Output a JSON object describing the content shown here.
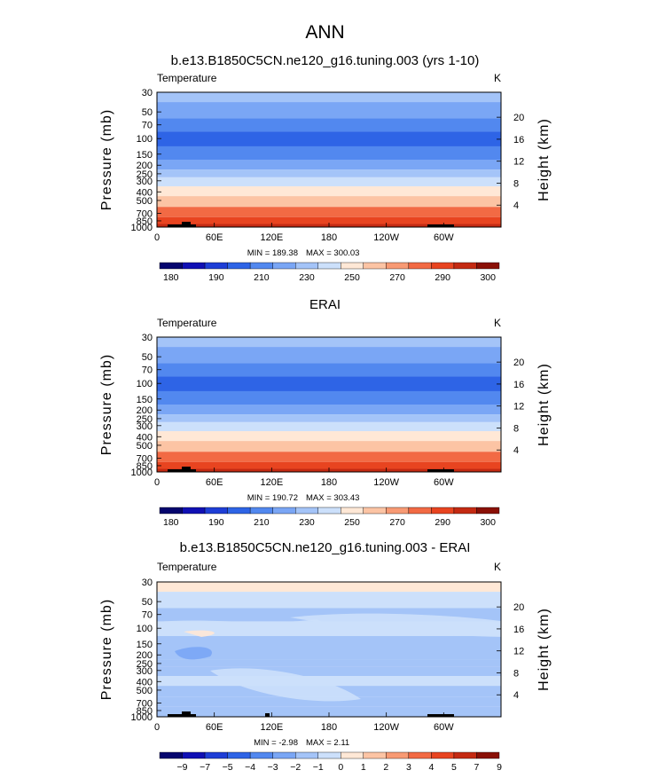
{
  "figure": {
    "season": "ANN",
    "palette_temp": [
      "#06066e",
      "#1010b4",
      "#1e3ed6",
      "#2e64e6",
      "#5288ef",
      "#7aa6f5",
      "#a4c4f8",
      "#cce0fb",
      "#ffe8d6",
      "#fcc4a4",
      "#f89a74",
      "#f26a44",
      "#e84420",
      "#c42a12",
      "#8a1006"
    ],
    "palette_diff": [
      "#06066e",
      "#1010b4",
      "#1e3ed6",
      "#2e64e6",
      "#5288ef",
      "#7aa6f5",
      "#a4c4f8",
      "#cce0fb",
      "#ffe8d6",
      "#fcc4a4",
      "#f89a74",
      "#f26a44",
      "#e84420",
      "#c42a12",
      "#8a1006"
    ]
  },
  "chart_data": [
    {
      "type": "heatmap",
      "title": "b.e13.B1850C5CN.ne120_g16.tuning.003 (yrs 1-10)",
      "variable": "Temperature",
      "units": "K",
      "xlabel": "",
      "ylabel": "Pressure (mb)",
      "ylabel_right": "Height (km)",
      "x_ticks": [
        "0",
        "60E",
        "120E",
        "180",
        "120W",
        "60W"
      ],
      "y_ticks": [
        "30",
        "50",
        "70",
        "100",
        "150",
        "200",
        "250",
        "300",
        "400",
        "500",
        "700",
        "850",
        "1000"
      ],
      "y_ticks_right": [
        "20",
        "16",
        "12",
        "8",
        "4"
      ],
      "min_label": "MIN = 189.38",
      "max_label": "MAX = 300.03",
      "colorbar_labels": [
        "180",
        "190",
        "210",
        "230",
        "250",
        "270",
        "290",
        "300"
      ],
      "profile_levels": [
        {
          "pressure": 30,
          "value": 225
        },
        {
          "pressure": 50,
          "value": 215
        },
        {
          "pressure": 70,
          "value": 205
        },
        {
          "pressure": 100,
          "value": 197
        },
        {
          "pressure": 150,
          "value": 207
        },
        {
          "pressure": 200,
          "value": 217
        },
        {
          "pressure": 250,
          "value": 227
        },
        {
          "pressure": 300,
          "value": 236
        },
        {
          "pressure": 400,
          "value": 248
        },
        {
          "pressure": 500,
          "value": 258
        },
        {
          "pressure": 700,
          "value": 272
        },
        {
          "pressure": 850,
          "value": 282
        },
        {
          "pressure": 1000,
          "value": 292
        }
      ]
    },
    {
      "type": "heatmap",
      "title": "ERAI",
      "variable": "Temperature",
      "units": "K",
      "xlabel": "",
      "ylabel": "Pressure (mb)",
      "ylabel_right": "Height (km)",
      "x_ticks": [
        "0",
        "60E",
        "120E",
        "180",
        "120W",
        "60W"
      ],
      "y_ticks": [
        "30",
        "50",
        "70",
        "100",
        "150",
        "200",
        "250",
        "300",
        "400",
        "500",
        "700",
        "850",
        "1000"
      ],
      "y_ticks_right": [
        "20",
        "16",
        "12",
        "8",
        "4"
      ],
      "min_label": "MIN = 190.72",
      "max_label": "MAX = 303.43",
      "colorbar_labels": [
        "180",
        "190",
        "210",
        "230",
        "250",
        "270",
        "290",
        "300"
      ],
      "profile_levels": [
        {
          "pressure": 30,
          "value": 226
        },
        {
          "pressure": 50,
          "value": 216
        },
        {
          "pressure": 70,
          "value": 206
        },
        {
          "pressure": 100,
          "value": 198
        },
        {
          "pressure": 150,
          "value": 208
        },
        {
          "pressure": 200,
          "value": 218
        },
        {
          "pressure": 250,
          "value": 228
        },
        {
          "pressure": 300,
          "value": 237
        },
        {
          "pressure": 400,
          "value": 249
        },
        {
          "pressure": 500,
          "value": 259
        },
        {
          "pressure": 700,
          "value": 273
        },
        {
          "pressure": 850,
          "value": 284
        },
        {
          "pressure": 1000,
          "value": 294
        }
      ]
    },
    {
      "type": "heatmap",
      "title": "b.e13.B1850C5CN.ne120_g16.tuning.003 - ERAI",
      "variable": "Temperature",
      "units": "K",
      "xlabel": "",
      "ylabel": "Pressure (mb)",
      "ylabel_right": "Height (km)",
      "x_ticks": [
        "0",
        "60E",
        "120E",
        "180",
        "120W",
        "60W"
      ],
      "y_ticks": [
        "30",
        "50",
        "70",
        "100",
        "150",
        "200",
        "250",
        "300",
        "400",
        "500",
        "700",
        "850",
        "1000"
      ],
      "y_ticks_right": [
        "20",
        "16",
        "12",
        "8",
        "4"
      ],
      "min_label": "MIN =  -2.98",
      "max_label": "MAX =   2.11",
      "colorbar_labels": [
        "-9",
        "-7",
        "-5",
        "-4",
        "-3",
        "-2",
        "-1",
        "0",
        "1",
        "2",
        "3",
        "4",
        "5",
        "7",
        "9"
      ],
      "profile_levels": [
        {
          "pressure": 30,
          "value": 0.5
        },
        {
          "pressure": 50,
          "value": -0.5
        },
        {
          "pressure": 70,
          "value": -1.5
        },
        {
          "pressure": 100,
          "value": -0.5
        },
        {
          "pressure": 150,
          "value": -1.5
        },
        {
          "pressure": 200,
          "value": -1.5
        },
        {
          "pressure": 250,
          "value": -1.5
        },
        {
          "pressure": 300,
          "value": -1.5
        },
        {
          "pressure": 400,
          "value": -0.5
        },
        {
          "pressure": 500,
          "value": -1.5
        },
        {
          "pressure": 700,
          "value": -1.5
        },
        {
          "pressure": 850,
          "value": -1.5
        },
        {
          "pressure": 1000,
          "value": -1.5
        }
      ]
    }
  ]
}
